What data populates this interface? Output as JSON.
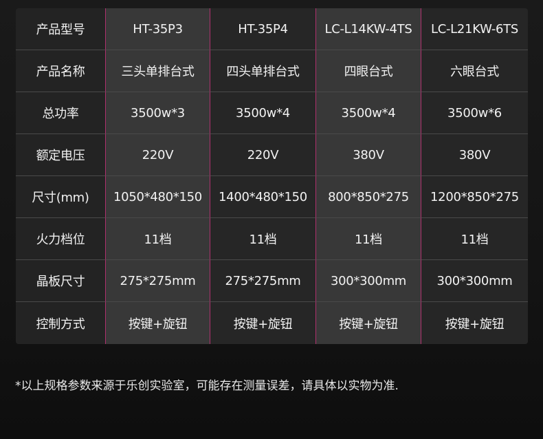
{
  "table": {
    "rows": [
      {
        "label": "产品型号",
        "values": [
          "HT-35P3",
          "HT-35P4",
          "LC-L14KW-4TS",
          "LC-L21KW-6TS"
        ]
      },
      {
        "label": "产品名称",
        "values": [
          "三头单排台式",
          "四头单排台式",
          "四眼台式",
          "六眼台式"
        ]
      },
      {
        "label": "总功率",
        "values": [
          "3500w*3",
          "3500w*4",
          "3500w*4",
          "3500w*6"
        ]
      },
      {
        "label": "额定电压",
        "values": [
          "220V",
          "220V",
          "380V",
          "380V"
        ]
      },
      {
        "label": "尺寸(mm)",
        "values": [
          "1050*480*150",
          "1400*480*150",
          "800*850*275",
          "1200*850*275"
        ]
      },
      {
        "label": "火力档位",
        "values": [
          "11档",
          "11档",
          "11档",
          "11档"
        ]
      },
      {
        "label": "晶板尺寸",
        "values": [
          "275*275mm",
          "275*275mm",
          "300*300mm",
          "300*300mm"
        ]
      },
      {
        "label": "控制方式",
        "values": [
          "按键+旋钮",
          "按键+旋钮",
          "按键+旋钮",
          "按键+旋钮"
        ]
      }
    ],
    "highlight_color": "#b0306e"
  },
  "footnote": "*以上规格参数来源于乐创实验室，可能存在测量误差，请具体以实物为准."
}
